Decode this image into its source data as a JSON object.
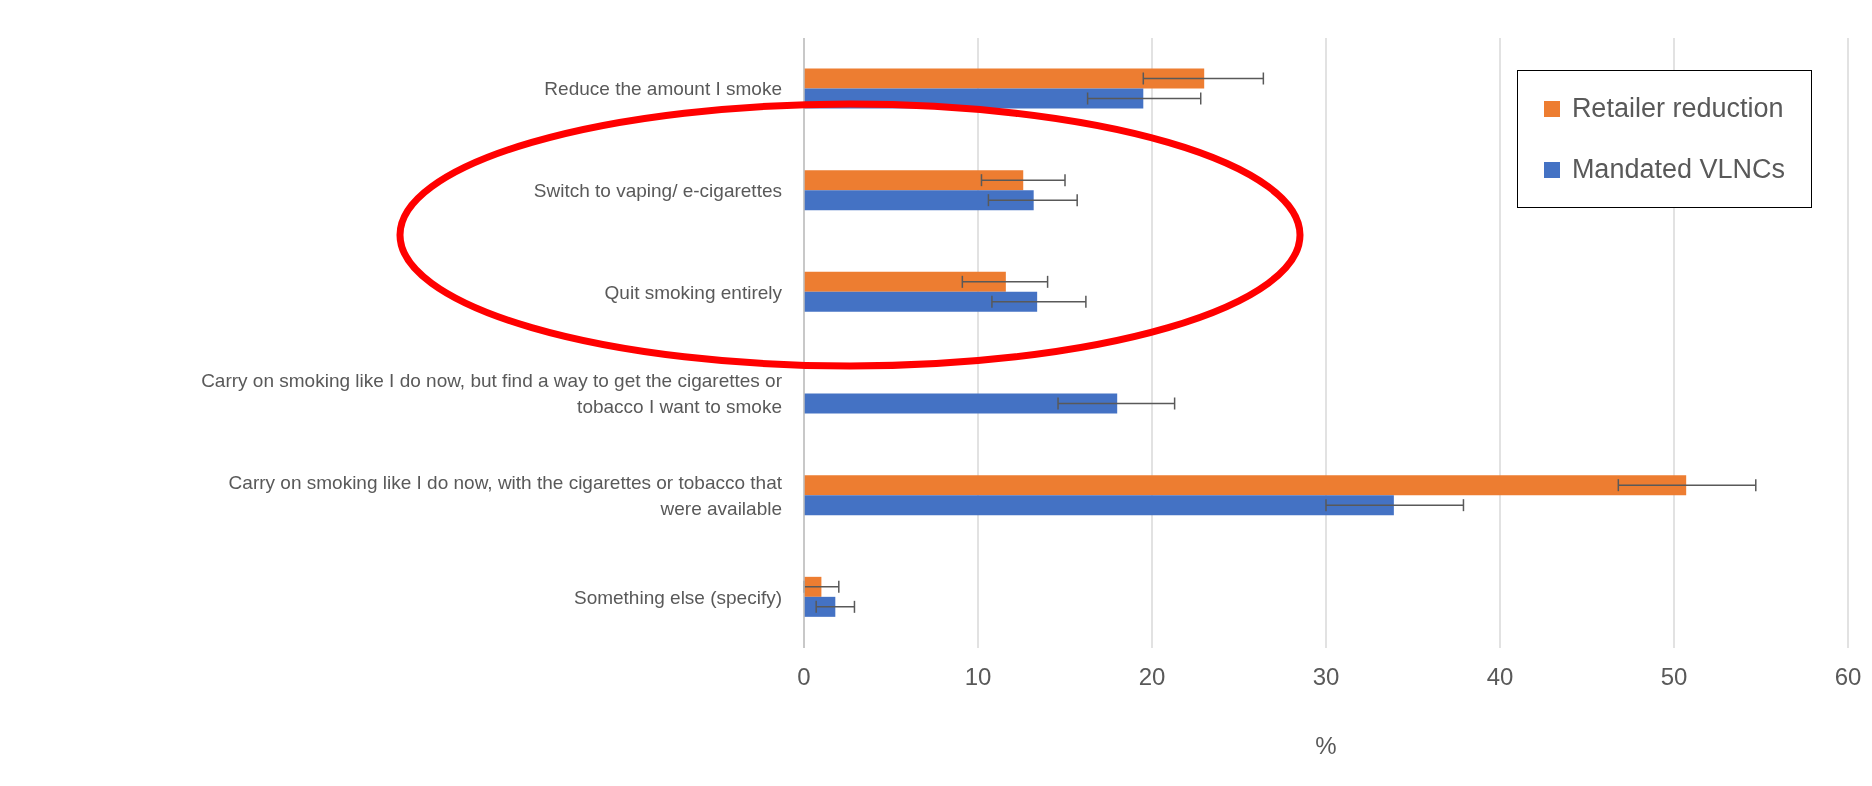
{
  "chart_data": {
    "type": "bar",
    "orientation": "horizontal",
    "xlabel": "%",
    "categories": [
      "Reduce the amount I smoke",
      "Switch to vaping/ e-cigarettes",
      "Quit smoking entirely",
      "Carry on smoking like I do now, but find a way to get the cigarettes or tobacco I want to smoke",
      "Carry on smoking like I do now, with the cigarettes or tobacco that were available",
      "Something else (specify)"
    ],
    "series": [
      {
        "name": "Retailer reduction",
        "color": "#ed7d31",
        "values": [
          23.0,
          12.6,
          11.6,
          null,
          50.7,
          1.0
        ],
        "errors": [
          [
            19.5,
            26.4
          ],
          [
            10.2,
            15.0
          ],
          [
            9.1,
            14.0
          ],
          null,
          [
            46.8,
            54.7
          ],
          [
            0.0,
            2.0
          ]
        ]
      },
      {
        "name": "Mandated VLNCs",
        "color": "#4472c4",
        "values": [
          19.5,
          13.2,
          13.4,
          18.0,
          33.9,
          1.8
        ],
        "errors": [
          [
            16.3,
            22.8
          ],
          [
            10.6,
            15.7
          ],
          [
            10.8,
            16.2
          ],
          [
            14.6,
            21.3
          ],
          [
            30.0,
            37.9
          ],
          [
            0.7,
            2.9
          ]
        ]
      }
    ],
    "xlim": [
      0,
      60
    ],
    "xticks": [
      0,
      10,
      20,
      30,
      40,
      50,
      60
    ],
    "grid": "x",
    "legend": "top right"
  }
}
